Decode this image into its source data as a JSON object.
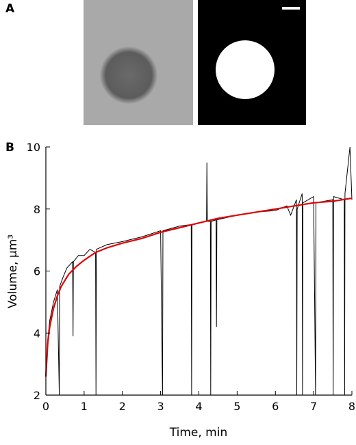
{
  "panel_a_label": "A",
  "chart_data": {
    "type": "line",
    "panel_label": "B",
    "x_label": "Time, min",
    "y_label": "Volume, μm³",
    "xlim": [
      0,
      8
    ],
    "xticks": [
      0,
      1,
      2,
      3,
      4,
      5,
      6,
      7,
      8
    ],
    "ylim": [
      2,
      10
    ],
    "yticks": [
      2,
      4,
      6,
      8,
      10
    ],
    "series": [
      {
        "color": "#000000",
        "x": [
          0,
          0.05,
          0.1,
          0.2,
          0.3,
          0.35,
          0.36,
          0.45,
          0.55,
          0.7,
          0.71,
          0.72,
          0.85,
          1.0,
          1.15,
          1.3,
          1.31,
          1.32,
          1.6,
          2.0,
          2.5,
          3.0,
          3.05,
          3.06,
          3.5,
          3.8,
          3.81,
          3.82,
          4.2,
          4.21,
          4.22,
          4.3,
          4.31,
          4.32,
          4.45,
          4.46,
          4.47,
          5.0,
          5.5,
          6.0,
          6.3,
          6.4,
          6.55,
          6.56,
          6.57,
          6.7,
          6.71,
          6.72,
          7.0,
          7.05,
          7.06,
          7.5,
          7.51,
          7.52,
          7.8,
          7.81,
          7.82,
          7.95,
          8.0
        ],
        "values": [
          2.7,
          3.8,
          4.4,
          5.0,
          5.4,
          2.0,
          5.5,
          5.8,
          6.1,
          6.3,
          3.9,
          6.3,
          6.5,
          6.5,
          6.7,
          6.6,
          2.0,
          6.7,
          6.85,
          6.95,
          7.1,
          7.3,
          2.0,
          7.3,
          7.45,
          7.5,
          2.0,
          7.5,
          7.6,
          9.5,
          7.6,
          7.6,
          2.0,
          7.6,
          7.65,
          4.2,
          7.65,
          7.8,
          7.9,
          7.95,
          8.1,
          7.8,
          8.3,
          2.0,
          8.0,
          8.5,
          2.0,
          8.2,
          8.4,
          2.0,
          8.2,
          8.3,
          2.0,
          8.4,
          8.3,
          2.0,
          8.5,
          10.0,
          8.3
        ]
      },
      {
        "color": "#e00000",
        "x": [
          0,
          0.05,
          0.1,
          0.2,
          0.3,
          0.4,
          0.6,
          0.8,
          1,
          1.3,
          1.6,
          2,
          2.5,
          3,
          3.5,
          4,
          4.5,
          5,
          5.5,
          6,
          6.5,
          7,
          7.5,
          8
        ],
        "values": [
          2.6,
          3.7,
          4.2,
          4.8,
          5.2,
          5.5,
          5.9,
          6.15,
          6.35,
          6.6,
          6.75,
          6.9,
          7.05,
          7.25,
          7.4,
          7.55,
          7.7,
          7.8,
          7.9,
          8.0,
          8.1,
          8.2,
          8.25,
          8.35
        ]
      }
    ]
  }
}
